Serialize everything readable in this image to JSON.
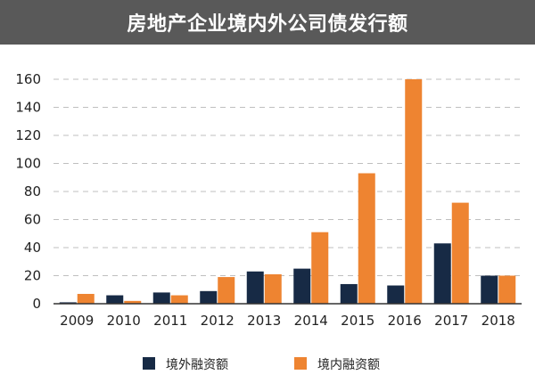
{
  "header": {
    "title": "房地产企业境内外公司债发行额"
  },
  "colors": {
    "title_bg": "#595959",
    "overseas": "#172a45",
    "domestic": "#ee8431",
    "grid": "#bfbfbf",
    "axis": "#333333"
  },
  "chart_data": {
    "type": "bar",
    "title": "房地产企业境内外公司债发行额",
    "xlabel": "",
    "ylabel": "",
    "categories": [
      "2009",
      "2010",
      "2011",
      "2012",
      "2013",
      "2014",
      "2015",
      "2016",
      "2017",
      "2018"
    ],
    "series": [
      {
        "name": "境外融资额",
        "color": "#172a45",
        "values": [
          1,
          6,
          8,
          9,
          23,
          25,
          14,
          13,
          43,
          20
        ]
      },
      {
        "name": "境内融资额",
        "color": "#ee8431",
        "values": [
          7,
          2,
          6,
          19,
          21,
          51,
          93,
          160,
          72,
          20
        ]
      }
    ],
    "ylim": [
      0,
      160
    ],
    "yticks": [
      0,
      20,
      40,
      60,
      80,
      100,
      120,
      140,
      160
    ],
    "grid": true,
    "legend_position": "bottom"
  }
}
